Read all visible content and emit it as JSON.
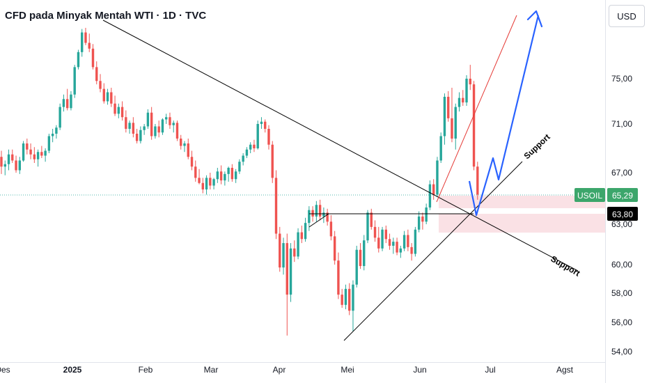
{
  "header": {
    "title": "CFD pada Minyak Mentah WTI · 1D · TVC",
    "currency": "USD"
  },
  "colors": {
    "up": "#26a69a",
    "down": "#ef5350",
    "trend_red": "#e53935",
    "arrow_blue": "#2962ff",
    "zone_fill": "#f8d7dc",
    "badge_green": "#3ca66b",
    "badge_black": "#000000"
  },
  "chart_data": {
    "type": "candlestick",
    "ylim": [
      54,
      80
    ],
    "y_ticks": [
      "54,00",
      "56,00",
      "58,00",
      "60,00",
      "63,00",
      "67,00",
      "71,00",
      "75,00"
    ],
    "x_ticks": [
      {
        "label": "Des",
        "bold": false
      },
      {
        "label": "2025",
        "bold": true
      },
      {
        "label": "Feb",
        "bold": false
      },
      {
        "label": "Mar",
        "bold": false
      },
      {
        "label": "Apr",
        "bold": false
      },
      {
        "label": "Mei",
        "bold": false
      },
      {
        "label": "Jun",
        "bold": false
      },
      {
        "label": "Jul",
        "bold": false
      },
      {
        "label": "Agst",
        "bold": false
      }
    ],
    "ohlc": [
      [
        68.3,
        68.8,
        66.9,
        67.5
      ],
      [
        67.5,
        68.0,
        66.8,
        67.7
      ],
      [
        67.7,
        68.9,
        67.2,
        68.5
      ],
      [
        68.5,
        68.9,
        67.8,
        68.0
      ],
      [
        68.0,
        68.4,
        67.0,
        67.2
      ],
      [
        67.2,
        68.3,
        66.9,
        68.0
      ],
      [
        68.0,
        69.6,
        67.9,
        69.4
      ],
      [
        69.4,
        69.8,
        68.5,
        68.9
      ],
      [
        68.9,
        69.4,
        68.1,
        68.5
      ],
      [
        68.5,
        69.1,
        67.8,
        68.1
      ],
      [
        68.1,
        68.9,
        67.5,
        68.7
      ],
      [
        68.7,
        69.2,
        68.2,
        68.4
      ],
      [
        68.4,
        69.0,
        67.9,
        68.8
      ],
      [
        68.8,
        70.2,
        68.6,
        70.0
      ],
      [
        70.0,
        70.6,
        69.5,
        70.2
      ],
      [
        70.2,
        70.9,
        69.8,
        70.7
      ],
      [
        70.7,
        72.8,
        70.5,
        72.5
      ],
      [
        72.5,
        73.6,
        72.1,
        73.2
      ],
      [
        73.2,
        74.1,
        72.2,
        72.4
      ],
      [
        72.4,
        73.9,
        72.2,
        73.6
      ],
      [
        73.6,
        76.2,
        73.3,
        76.0
      ],
      [
        76.0,
        77.5,
        75.8,
        77.3
      ],
      [
        77.3,
        79.3,
        76.9,
        79.0
      ],
      [
        79.0,
        79.4,
        77.9,
        78.1
      ],
      [
        78.1,
        78.9,
        77.3,
        77.6
      ],
      [
        77.6,
        78.0,
        75.8,
        76.0
      ],
      [
        76.0,
        76.5,
        74.5,
        74.8
      ],
      [
        74.8,
        75.4,
        73.8,
        74.1
      ],
      [
        74.1,
        74.6,
        72.8,
        73.0
      ],
      [
        73.0,
        74.1,
        72.7,
        73.8
      ],
      [
        73.8,
        74.2,
        72.5,
        72.8
      ],
      [
        72.8,
        73.5,
        71.7,
        71.9
      ],
      [
        71.9,
        72.8,
        71.5,
        72.5
      ],
      [
        72.5,
        73.0,
        71.3,
        71.6
      ],
      [
        71.6,
        72.2,
        70.3,
        70.6
      ],
      [
        70.6,
        71.3,
        70.2,
        71.1
      ],
      [
        71.1,
        71.6,
        69.9,
        70.2
      ],
      [
        70.2,
        70.6,
        69.4,
        69.6
      ],
      [
        69.6,
        70.8,
        69.4,
        70.5
      ],
      [
        70.5,
        71.0,
        70.1,
        70.8
      ],
      [
        70.8,
        72.3,
        70.6,
        72.0
      ],
      [
        72.0,
        72.5,
        69.7,
        70.0
      ],
      [
        70.0,
        71.0,
        69.8,
        70.8
      ],
      [
        70.8,
        71.3,
        69.9,
        70.3
      ],
      [
        70.3,
        71.5,
        70.1,
        71.4
      ],
      [
        71.4,
        71.9,
        71.0,
        71.6
      ],
      [
        71.6,
        72.0,
        70.6,
        70.9
      ],
      [
        70.9,
        71.3,
        70.3,
        71.1
      ],
      [
        71.1,
        71.3,
        69.6,
        69.8
      ],
      [
        69.8,
        70.1,
        68.9,
        69.2
      ],
      [
        69.2,
        69.6,
        68.7,
        69.4
      ],
      [
        69.4,
        69.8,
        68.1,
        68.3
      ],
      [
        68.3,
        68.8,
        67.2,
        67.5
      ],
      [
        67.5,
        68.0,
        66.3,
        66.6
      ],
      [
        66.6,
        67.3,
        66.1,
        66.2
      ],
      [
        66.2,
        66.6,
        65.4,
        65.7
      ],
      [
        65.7,
        66.8,
        65.3,
        66.6
      ],
      [
        66.6,
        67.0,
        65.7,
        66.0
      ],
      [
        66.0,
        66.6,
        65.7,
        66.5
      ],
      [
        66.5,
        67.4,
        66.2,
        67.1
      ],
      [
        67.1,
        67.6,
        66.1,
        66.4
      ],
      [
        66.4,
        67.1,
        66.0,
        66.9
      ],
      [
        66.9,
        67.5,
        66.3,
        67.4
      ],
      [
        67.4,
        67.7,
        66.3,
        66.5
      ],
      [
        66.5,
        67.3,
        66.2,
        67.1
      ],
      [
        67.1,
        68.1,
        66.9,
        67.9
      ],
      [
        67.9,
        68.6,
        67.6,
        68.4
      ],
      [
        68.4,
        69.1,
        68.2,
        68.9
      ],
      [
        68.9,
        69.5,
        68.6,
        69.3
      ],
      [
        69.3,
        69.7,
        68.7,
        69.0
      ],
      [
        69.0,
        71.3,
        68.9,
        71.0
      ],
      [
        71.0,
        71.6,
        70.6,
        71.2
      ],
      [
        71.2,
        71.4,
        70.3,
        70.6
      ],
      [
        70.6,
        70.9,
        68.9,
        69.3
      ],
      [
        69.3,
        69.6,
        66.2,
        66.6
      ],
      [
        66.6,
        67.2,
        61.9,
        62.3
      ],
      [
        62.3,
        62.8,
        59.5,
        59.8
      ],
      [
        59.8,
        62.0,
        59.3,
        61.6
      ],
      [
        61.6,
        62.3,
        55.1,
        57.9
      ],
      [
        57.9,
        61.6,
        57.4,
        61.2
      ],
      [
        61.2,
        61.8,
        60.2,
        60.6
      ],
      [
        60.6,
        62.7,
        60.4,
        62.4
      ],
      [
        62.4,
        62.9,
        61.6,
        61.9
      ],
      [
        61.9,
        63.5,
        61.7,
        63.1
      ],
      [
        63.1,
        64.4,
        62.5,
        64.1
      ],
      [
        64.1,
        64.4,
        63.2,
        63.6
      ],
      [
        63.6,
        64.8,
        63.2,
        64.5
      ],
      [
        64.5,
        64.9,
        63.3,
        63.6
      ],
      [
        63.6,
        64.3,
        63.1,
        63.9
      ],
      [
        63.9,
        64.2,
        62.9,
        63.2
      ],
      [
        63.2,
        63.7,
        61.8,
        62.1
      ],
      [
        62.1,
        62.5,
        60.0,
        60.3
      ],
      [
        60.3,
        60.9,
        57.6,
        57.9
      ],
      [
        57.9,
        58.3,
        57.0,
        57.2
      ],
      [
        57.2,
        58.6,
        56.9,
        58.3
      ],
      [
        58.3,
        58.7,
        56.5,
        56.8
      ],
      [
        56.8,
        58.9,
        55.4,
        58.6
      ],
      [
        58.6,
        61.4,
        58.4,
        61.1
      ],
      [
        61.1,
        61.6,
        59.7,
        59.9
      ],
      [
        59.9,
        62.2,
        59.6,
        61.8
      ],
      [
        61.8,
        64.1,
        61.6,
        63.9
      ],
      [
        63.9,
        64.2,
        62.6,
        62.8
      ],
      [
        62.8,
        63.3,
        61.7,
        62.0
      ],
      [
        62.0,
        62.8,
        60.9,
        61.2
      ],
      [
        61.2,
        62.8,
        61.0,
        62.6
      ],
      [
        62.6,
        62.9,
        61.6,
        61.9
      ],
      [
        61.9,
        62.3,
        61.1,
        61.4
      ],
      [
        61.4,
        62.0,
        60.8,
        61.7
      ],
      [
        61.7,
        62.0,
        60.7,
        60.9
      ],
      [
        60.9,
        61.4,
        60.5,
        61.2
      ],
      [
        61.2,
        62.5,
        61.0,
        62.2
      ],
      [
        62.2,
        62.6,
        61.0,
        61.3
      ],
      [
        61.3,
        61.6,
        60.3,
        60.8
      ],
      [
        60.8,
        62.8,
        60.6,
        62.6
      ],
      [
        62.6,
        64.0,
        62.4,
        63.6
      ],
      [
        63.6,
        63.9,
        62.6,
        63.2
      ],
      [
        63.2,
        64.6,
        63.0,
        64.3
      ],
      [
        64.3,
        66.4,
        64.1,
        66.1
      ],
      [
        66.1,
        66.5,
        64.9,
        65.3
      ],
      [
        65.3,
        68.3,
        65.1,
        68.0
      ],
      [
        68.0,
        70.3,
        67.8,
        70.0
      ],
      [
        70.0,
        73.7,
        69.3,
        73.4
      ],
      [
        73.4,
        73.9,
        71.2,
        71.5
      ],
      [
        71.5,
        74.2,
        69.5,
        69.8
      ],
      [
        69.8,
        72.8,
        68.9,
        72.5
      ],
      [
        72.5,
        73.8,
        72.1,
        73.3
      ],
      [
        73.3,
        74.0,
        72.6,
        72.9
      ],
      [
        72.9,
        75.3,
        72.6,
        75.0
      ],
      [
        75.0,
        76.2,
        74.0,
        74.5
      ],
      [
        74.5,
        74.8,
        67.2,
        67.5
      ],
      [
        67.5,
        67.9,
        64.9,
        65.3
      ]
    ],
    "annotations": [
      {
        "type": "label",
        "text": "Support"
      },
      {
        "type": "label",
        "text": "Support"
      }
    ],
    "price_labels": [
      {
        "symbol": "USOIL",
        "price": "65,29"
      },
      {
        "price": "63,80"
      }
    ]
  }
}
